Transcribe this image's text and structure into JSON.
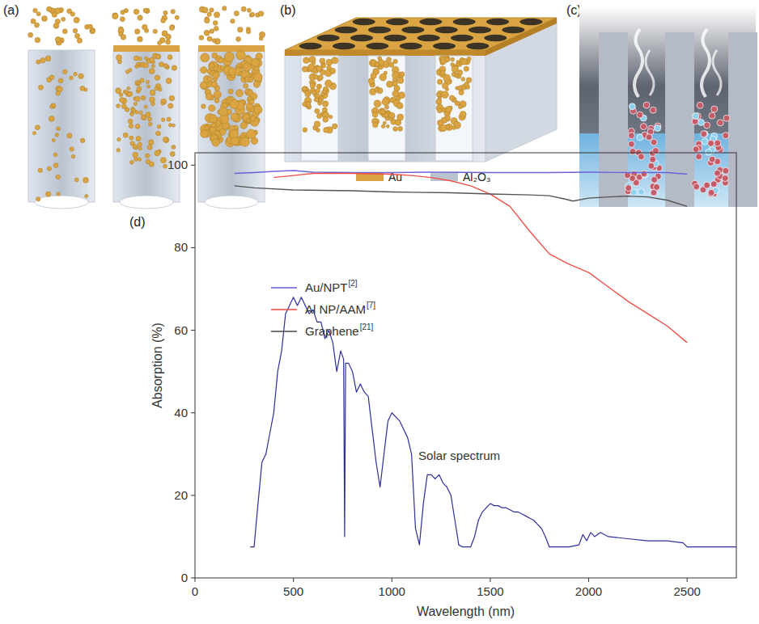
{
  "figure": {
    "panel_labels": [
      "(a)",
      "(b)",
      "(c)",
      "(d)"
    ],
    "materials": [
      {
        "label": "Au",
        "color": "#d9a441"
      },
      {
        "label": "Al₂O₃",
        "color": "#b9c2cf"
      }
    ]
  },
  "chart_data": {
    "type": "line",
    "x_label": "Wavelength (nm)",
    "y_label": "Absorption (%)",
    "xlim": [
      0,
      2750
    ],
    "xticks": [
      0,
      500,
      1000,
      1500,
      2000,
      2500
    ],
    "ylim": [
      0,
      103
    ],
    "yticks": [
      0,
      20,
      40,
      60,
      80,
      100
    ],
    "legend": "top-left",
    "series": [
      {
        "name": "Au/NPT",
        "ref": "[2]",
        "color": "#6a63d8",
        "x": [
          200,
          300,
          400,
          500,
          600,
          800,
          1000,
          1200,
          1500,
          1800,
          2000,
          2200,
          2400,
          2500
        ],
        "values": [
          98,
          98.2,
          98.5,
          98.7,
          98.3,
          98.2,
          98.2,
          98.3,
          98.2,
          98.2,
          98.3,
          98.2,
          98.2,
          97.8
        ]
      },
      {
        "name": "Al NP/AAM",
        "ref": "[7]",
        "color": "#f0504a",
        "x": [
          400,
          500,
          600,
          800,
          1000,
          1100,
          1200,
          1300,
          1400,
          1500,
          1600,
          1700,
          1800,
          1900,
          2000,
          2100,
          2200,
          2300,
          2400,
          2500
        ],
        "values": [
          97,
          97.5,
          98,
          98,
          97.8,
          97.5,
          97,
          96.2,
          95,
          93,
          90,
          84,
          78.5,
          76,
          74,
          70.5,
          67,
          64,
          61,
          57
        ]
      },
      {
        "name": "Graphene",
        "ref": "[21]",
        "color": "#555555",
        "x": [
          200,
          300,
          500,
          800,
          1000,
          1300,
          1500,
          1700,
          1800,
          1880,
          1920,
          2000,
          2100,
          2200,
          2300,
          2400,
          2500
        ],
        "values": [
          95,
          94.5,
          94,
          93.8,
          93.5,
          93.3,
          93,
          92.8,
          92.6,
          91.8,
          91.3,
          92,
          92.3,
          92.5,
          92.3,
          91.5,
          90
        ]
      }
    ],
    "solar_spectrum": {
      "name": "Solar spectrum",
      "color": "#2e2e9c",
      "x": [
        280,
        300,
        320,
        340,
        360,
        380,
        400,
        420,
        440,
        460,
        480,
        500,
        520,
        540,
        560,
        580,
        600,
        620,
        640,
        660,
        680,
        700,
        720,
        740,
        755,
        760,
        765,
        780,
        800,
        820,
        840,
        860,
        880,
        900,
        920,
        940,
        960,
        980,
        1000,
        1020,
        1040,
        1060,
        1080,
        1100,
        1120,
        1140,
        1160,
        1180,
        1200,
        1220,
        1240,
        1260,
        1280,
        1300,
        1320,
        1340,
        1360,
        1380,
        1400,
        1420,
        1440,
        1460,
        1480,
        1500,
        1520,
        1540,
        1560,
        1580,
        1600,
        1620,
        1640,
        1660,
        1680,
        1700,
        1720,
        1740,
        1760,
        1780,
        1800,
        1850,
        1900,
        1950,
        1970,
        1990,
        2010,
        2030,
        2060,
        2100,
        2200,
        2300,
        2400,
        2480,
        2500,
        2750
      ],
      "values": [
        7.5,
        7.5,
        18,
        28,
        30,
        35,
        40,
        50,
        55,
        64,
        66,
        68,
        66,
        68,
        66,
        64,
        65,
        62,
        62,
        58,
        60,
        57,
        50,
        55,
        53,
        10,
        52,
        52,
        50,
        45,
        47,
        45,
        44,
        36,
        28,
        22,
        30,
        38,
        40,
        39,
        38,
        36,
        34,
        30,
        12,
        8,
        18,
        25,
        25,
        24,
        25,
        23,
        22,
        20,
        14,
        8,
        7.5,
        7.5,
        7.5,
        10,
        14,
        16,
        17,
        18,
        17.5,
        17.5,
        17,
        17,
        16.5,
        16,
        16,
        15.5,
        15,
        14.5,
        14,
        13,
        12,
        10,
        7.5,
        7.5,
        7.5,
        8,
        10.5,
        9,
        11,
        10,
        11,
        10,
        9.5,
        9,
        9,
        8.5,
        7.5,
        7.5
      ]
    }
  }
}
